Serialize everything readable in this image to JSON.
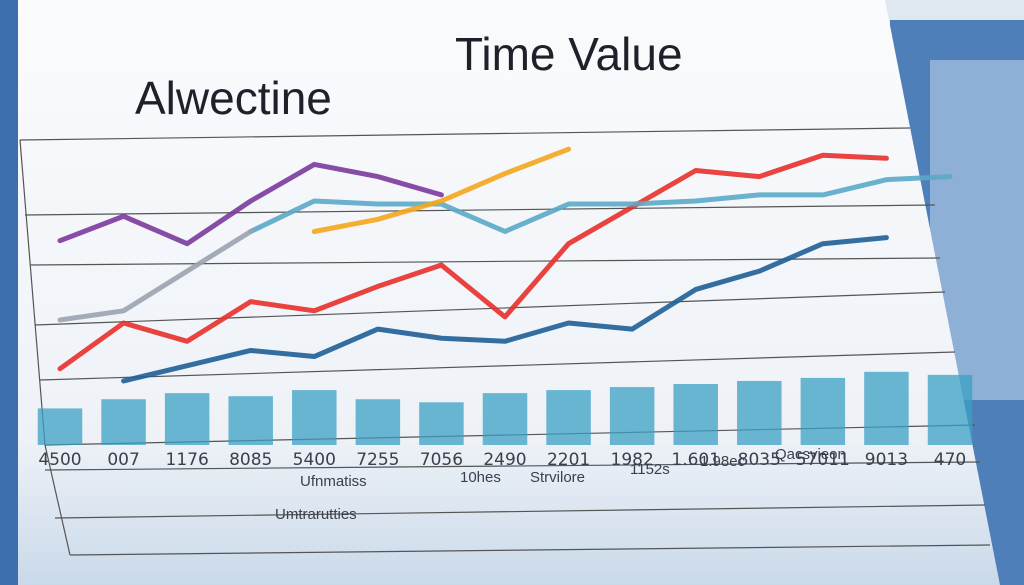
{
  "chart_data": {
    "type": "line",
    "title": [
      "Alwectine",
      "Time Value"
    ],
    "categories": [
      "4500",
      "007",
      "1176",
      "8085",
      "5400",
      "7255",
      "7056",
      "2490",
      "2201",
      "1982",
      "1.601",
      "8035",
      "57011",
      "9013",
      "470"
    ],
    "ylim": [
      0,
      100
    ],
    "series": [
      {
        "color": "#e8302a",
        "values": [
          25,
          40,
          34,
          47,
          44,
          52,
          59,
          42,
          66,
          78,
          90,
          88,
          95,
          94,
          null
        ]
      },
      {
        "color": "#1f5f96",
        "values": [
          null,
          21,
          26,
          31,
          29,
          38,
          35,
          34,
          40,
          38,
          51,
          57,
          66,
          68,
          null
        ]
      },
      {
        "color": "#7b3a9c",
        "values": [
          67,
          75,
          66,
          80,
          92,
          88,
          82,
          null,
          null,
          null,
          null,
          null,
          null,
          null,
          null
        ]
      },
      {
        "color": "#5aa8c8",
        "values": [
          null,
          null,
          null,
          70,
          80,
          79,
          79,
          70,
          79,
          79,
          80,
          82,
          82,
          87,
          88
        ]
      },
      {
        "color": "#f4a61c",
        "values": [
          null,
          null,
          null,
          null,
          70,
          74,
          80,
          89,
          97,
          null,
          null,
          null,
          null,
          null,
          null
        ]
      },
      {
        "color": "#9aa3b0",
        "values": [
          41,
          44,
          57,
          70,
          null,
          null,
          null,
          null,
          null,
          null,
          null,
          null,
          null,
          null,
          null
        ]
      },
      {
        "type": "bar",
        "color": "#3aa0c4",
        "values": [
          12,
          15,
          17,
          16,
          18,
          15,
          14,
          17,
          18,
          19,
          20,
          21,
          22,
          24,
          23
        ]
      }
    ],
    "annotations": [
      "Ufnmatiss",
      "10hes",
      "Strvilore",
      "1152s",
      "1.98ec",
      "Qacsvieon",
      "Umtrarutties"
    ]
  }
}
